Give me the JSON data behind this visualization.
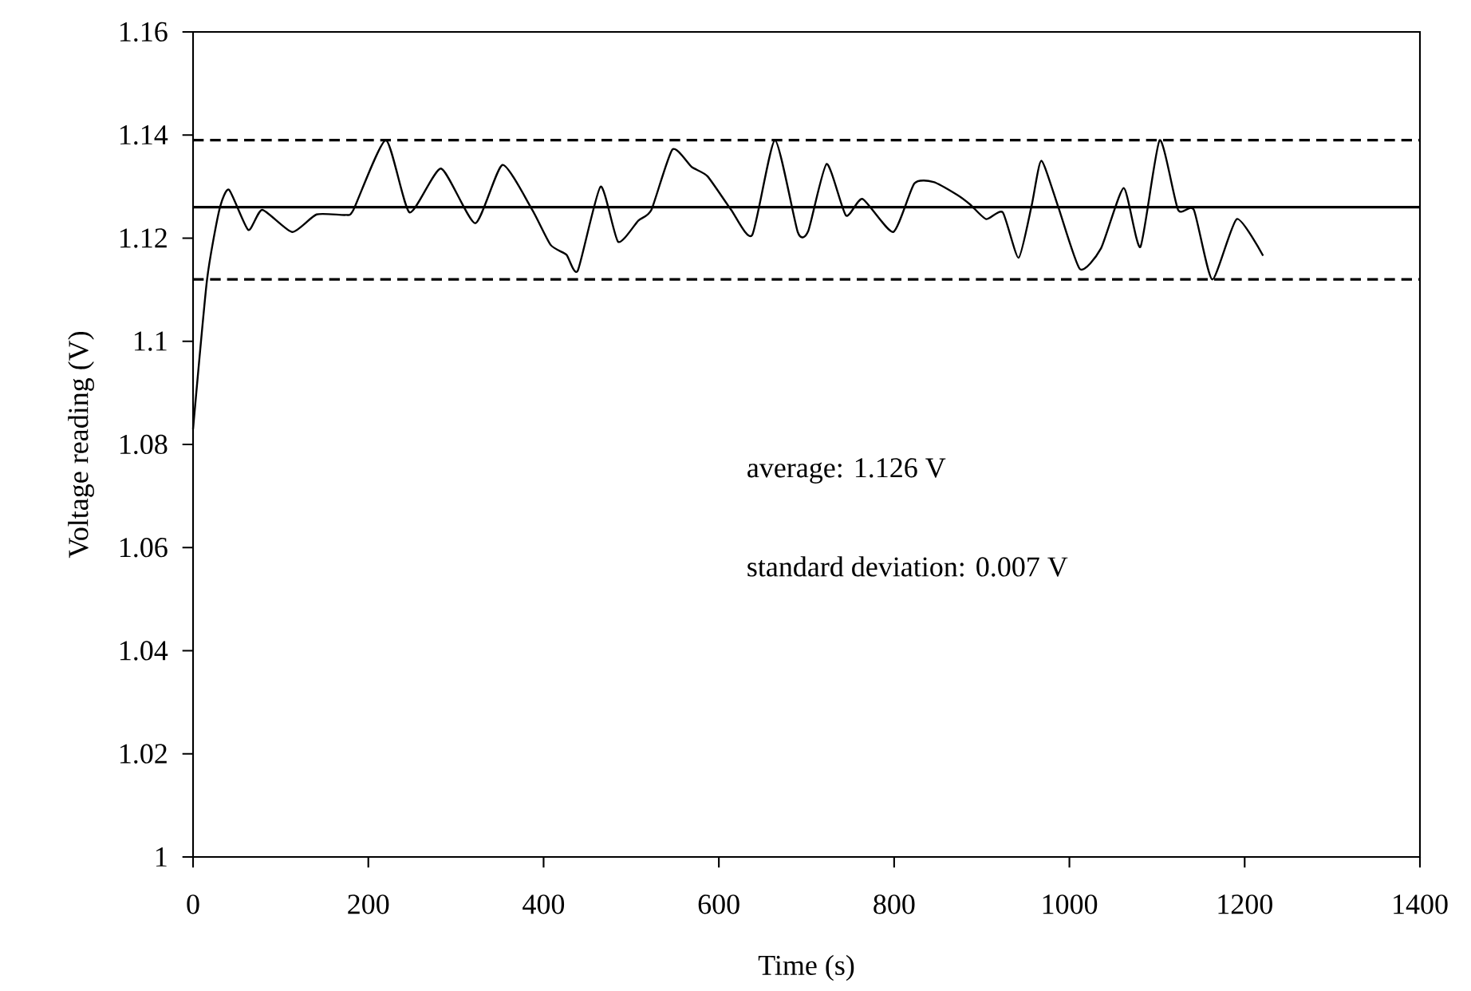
{
  "chart_data": {
    "type": "line",
    "xlabel": "Time (s)",
    "ylabel": "Voltage reading (V)",
    "annotations": [
      "average: 1.126 V",
      "standard deviation: 0.007 V"
    ],
    "xlim": [
      0,
      1400
    ],
    "ylim": [
      1,
      1.16
    ],
    "xticks": [
      0,
      200,
      400,
      600,
      800,
      1000,
      1200,
      1400
    ],
    "yticks": [
      1,
      1.02,
      1.04,
      1.06,
      1.08,
      1.1,
      1.12,
      1.14,
      1.16
    ],
    "grid": false,
    "series": [
      {
        "color": "#000000",
        "line_style": "solid",
        "x": [
          0,
          16,
          30,
          41,
          63,
          79,
          113,
          141,
          174,
          183,
          220,
          247,
          283,
          322,
          353,
          387,
          408,
          426,
          439,
          465,
          485,
          508,
          523,
          547,
          569,
          587,
          614,
          638,
          664,
          690,
          702,
          723,
          745,
          764,
          799,
          823,
          845,
          872,
          887,
          905,
          924,
          942,
          957,
          968,
          987,
          1012,
          1036,
          1062,
          1081,
          1103,
          1124,
          1142,
          1163,
          1191,
          1221
        ],
        "values": [
          1.083,
          1.112,
          1.1255,
          1.1294,
          1.1216,
          1.1255,
          1.1212,
          1.1246,
          1.1245,
          1.1255,
          1.139,
          1.125,
          1.1335,
          1.1229,
          1.1342,
          1.1255,
          1.1187,
          1.1168,
          1.1137,
          1.13,
          1.1193,
          1.1234,
          1.1255,
          1.1372,
          1.1338,
          1.132,
          1.1255,
          1.1206,
          1.139,
          1.1212,
          1.1214,
          1.1344,
          1.1244,
          1.1276,
          1.1212,
          1.1306,
          1.1309,
          1.1284,
          1.1265,
          1.1237,
          1.125,
          1.1162,
          1.1264,
          1.135,
          1.1262,
          1.114,
          1.118,
          1.1297,
          1.1183,
          1.139,
          1.1255,
          1.1255,
          1.112,
          1.1237,
          1.1166
        ]
      }
    ],
    "ref_lines": [
      {
        "axis": "y",
        "value": 1.126,
        "color": "#000000",
        "line_style": "solid"
      },
      {
        "axis": "y",
        "value": 1.139,
        "color": "#000000",
        "line_style": "dashed"
      },
      {
        "axis": "y",
        "value": 1.112,
        "color": "#000000",
        "line_style": "dashed"
      }
    ]
  }
}
